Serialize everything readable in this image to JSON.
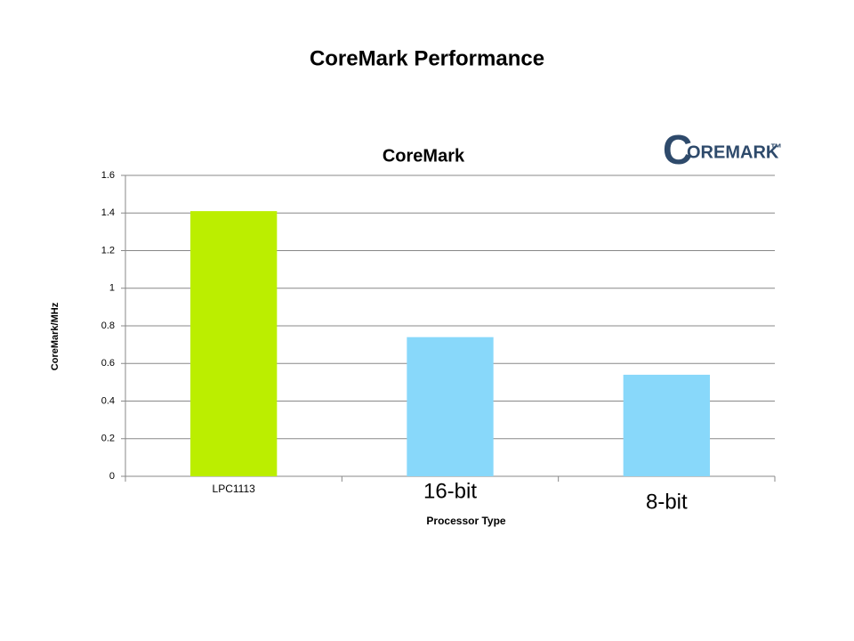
{
  "slide_title": "CoreMark Performance",
  "logo": {
    "initial": "C",
    "rest": "OREMARK",
    "trademark": "™"
  },
  "chart_data": {
    "type": "bar",
    "title": "CoreMark",
    "x_label": "Processor Type",
    "y_label": "CoreMark/MHz",
    "categories": [
      "LPC1113",
      "16-bit",
      "8-bit"
    ],
    "values": [
      1.41,
      0.74,
      0.54
    ],
    "colors": [
      "#bbee00",
      "#88d8fa",
      "#88d8fa"
    ],
    "ylim": [
      0,
      1.6
    ],
    "yticks": [
      0,
      0.2,
      0.4,
      0.6,
      0.8,
      1,
      1.2,
      1.4,
      1.6
    ],
    "grid": true
  }
}
